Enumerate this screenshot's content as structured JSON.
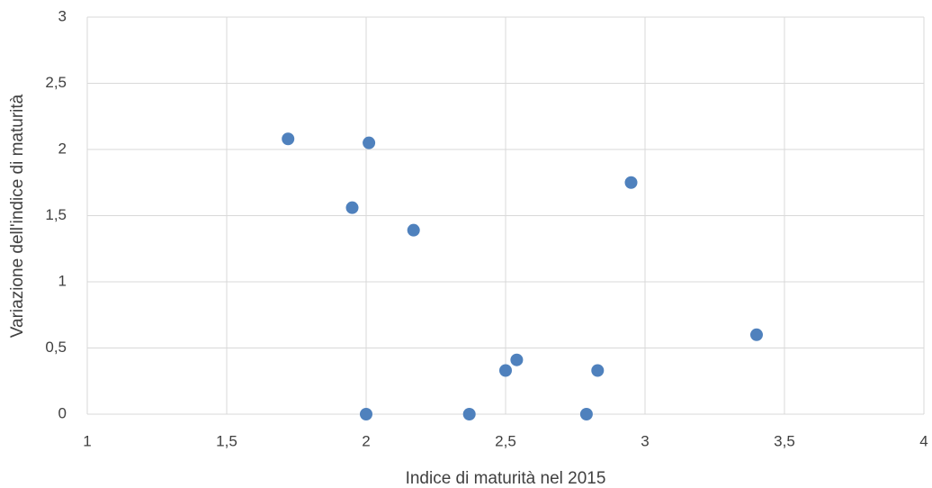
{
  "chart_data": {
    "type": "scatter",
    "x_label": "Indice di maturità nel 2015",
    "y_label": "Variazione dell'indice di maturità",
    "series": [
      {
        "color": "#4f81bd",
        "x": [
          1.72,
          2.01,
          1.95,
          2.17,
          2.95,
          3.4,
          2.54,
          2.5,
          2.83,
          2.0,
          2.37,
          2.79
        ],
        "values": [
          2.08,
          2.05,
          1.56,
          1.39,
          1.75,
          0.6,
          0.41,
          0.33,
          0.33,
          0,
          0,
          0
        ]
      }
    ],
    "xlim": [
      1,
      4
    ],
    "xticks": [
      1,
      {
        "value": 1.5,
        "label": "1,5"
      },
      2,
      {
        "value": 2.5,
        "label": "2,5"
      },
      3,
      {
        "value": 3.5,
        "label": "3,5"
      },
      4
    ],
    "ylim": [
      0,
      3
    ],
    "yticks": [
      0,
      {
        "value": 0.5,
        "label": "0,5"
      },
      1,
      {
        "value": 1.5,
        "label": "1,5"
      },
      2,
      {
        "value": 2.5,
        "label": "2,5"
      },
      3
    ],
    "grid": true
  }
}
